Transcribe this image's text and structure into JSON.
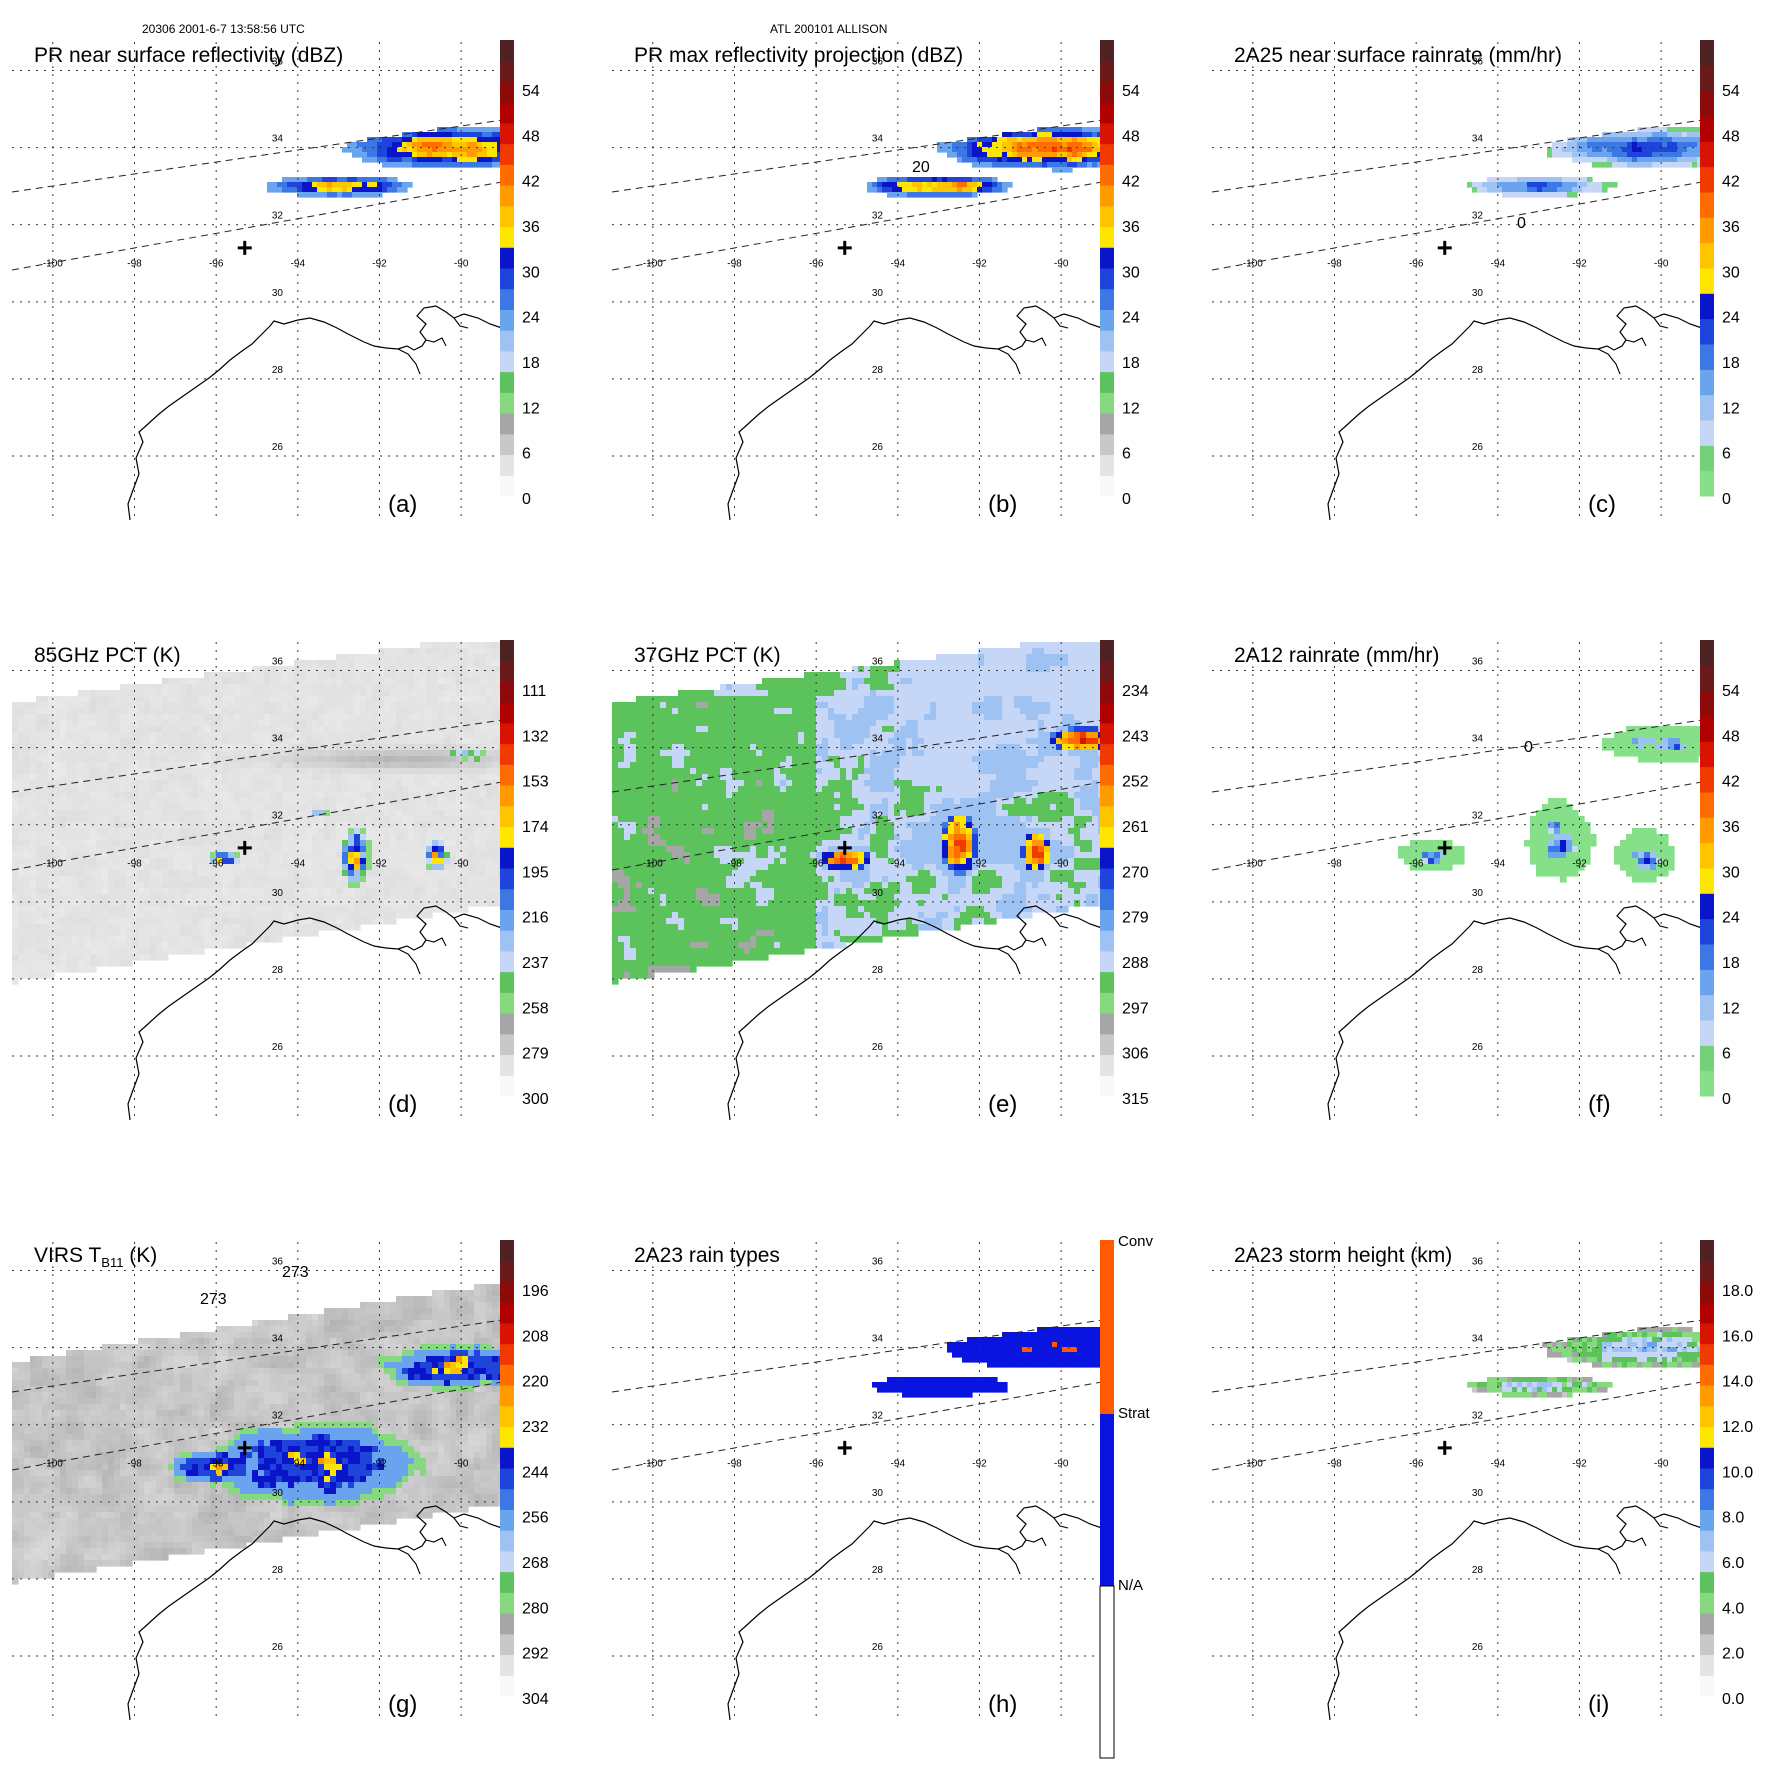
{
  "header": {
    "orbit_time": "20306 2001-6-7 13:58:56 UTC",
    "storm_id": "ATL 200101 ALLISON"
  },
  "map": {
    "lon_ticks": [
      "-100",
      "-98",
      "-96",
      "-94",
      "-92",
      "-90"
    ],
    "lat_ticks": [
      "36",
      "34",
      "32",
      "30",
      "28",
      "26"
    ],
    "lon_range": [
      -101,
      -89
    ],
    "lat_range": [
      25,
      37
    ],
    "storm_center": {
      "lon": -95.3,
      "lat": 31.4
    }
  },
  "panels": [
    {
      "id": "a",
      "title": "PR near surface reflectivity (dBZ)",
      "label": "(a)",
      "field": "dbz_near",
      "swath": "pr",
      "colorbar": {
        "type": "std",
        "ticks": [
          "54",
          "48",
          "42",
          "36",
          "30",
          "24",
          "18",
          "12",
          "6",
          "0"
        ]
      }
    },
    {
      "id": "b",
      "title": "PR max reflectivity projection (dBZ)",
      "label": "(b)",
      "field": "dbz_max",
      "swath": "pr",
      "contour_label": "20",
      "colorbar": {
        "type": "std",
        "ticks": [
          "54",
          "48",
          "42",
          "36",
          "30",
          "24",
          "18",
          "12",
          "6",
          "0"
        ]
      }
    },
    {
      "id": "c",
      "title": "2A25 near surface rainrate (mm/hr)",
      "label": "(c)",
      "field": "rain25",
      "swath": "pr",
      "contour_label": "0",
      "colorbar": {
        "type": "rain",
        "ticks": [
          "54",
          "48",
          "42",
          "36",
          "30",
          "24",
          "18",
          "12",
          "6",
          "0"
        ]
      }
    },
    {
      "id": "d",
      "title": "85GHz PCT (K)",
      "label": "(d)",
      "field": "pct85",
      "swath": "tmi",
      "colorbar": {
        "type": "pct",
        "ticks": [
          "111",
          "132",
          "153",
          "174",
          "195",
          "216",
          "237",
          "258",
          "279",
          "300"
        ]
      }
    },
    {
      "id": "e",
      "title": "37GHz PCT (K)",
      "label": "(e)",
      "field": "pct37",
      "swath": "tmi",
      "colorbar": {
        "type": "pct",
        "ticks": [
          "234",
          "243",
          "252",
          "261",
          "270",
          "279",
          "288",
          "297",
          "306",
          "315"
        ]
      }
    },
    {
      "id": "f",
      "title": "2A12 rainrate (mm/hr)",
      "label": "(f)",
      "field": "rain12",
      "swath": "tmi",
      "contour_label": "0",
      "colorbar": {
        "type": "rain",
        "ticks": [
          "54",
          "48",
          "42",
          "36",
          "30",
          "24",
          "18",
          "12",
          "6",
          "0"
        ]
      }
    },
    {
      "id": "g",
      "title_main": "VIRS T",
      "title_sub": "B11",
      "title_units": " (K)",
      "label": "(g)",
      "field": "virs",
      "swath": "virs",
      "contour_label": "273",
      "colorbar": {
        "type": "pct",
        "ticks": [
          "196",
          "208",
          "220",
          "232",
          "244",
          "256",
          "268",
          "280",
          "292",
          "304"
        ]
      }
    },
    {
      "id": "h",
      "title": "2A23 rain types",
      "label": "(h)",
      "field": "raintype",
      "swath": "pr",
      "colorbar": {
        "type": "cat",
        "ticks": [
          "Conv",
          "Strat",
          "N/A"
        ]
      }
    },
    {
      "id": "i",
      "title": "2A23 storm height (km)",
      "label": "(i)",
      "field": "height",
      "swath": "pr",
      "colorbar": {
        "type": "height",
        "ticks": [
          "18.0",
          "16.0",
          "14.0",
          "12.0",
          "10.0",
          "8.0",
          "6.0",
          "4.0",
          "2.0",
          "0.0"
        ]
      }
    }
  ],
  "colors": {
    "std": [
      "#f8f8f8",
      "#e4e4e4",
      "#c8c8c8",
      "#a6a6a6",
      "#86d97e",
      "#5cc25c",
      "#c6d6f6",
      "#9ec2f2",
      "#6aa4ee",
      "#3c78e4",
      "#1e44dc",
      "#0a14c8",
      "#ffe600",
      "#ffc400",
      "#ff9a00",
      "#ff6c00",
      "#f03a00",
      "#d81400",
      "#b00000",
      "#8c0a0a",
      "#6a1a1a",
      "#4e2222"
    ],
    "rain": [
      "#86e08a",
      "#72d27a",
      "#c6d6f6",
      "#9ec2f2",
      "#6aa4ee",
      "#3c78e4",
      "#1e44dc",
      "#0a14c8",
      "#ffe600",
      "#ffc400",
      "#ff9a00",
      "#ff6c00",
      "#f03a00",
      "#d81400",
      "#b00000",
      "#8c0a0a",
      "#6a1a1a",
      "#4e2222"
    ],
    "height": [
      "#f8f8f8",
      "#e4e4e4",
      "#c8c8c8",
      "#a6a6a6",
      "#86d97e",
      "#5cc25c",
      "#c6d6f6",
      "#9ec2f2",
      "#6aa4ee",
      "#3c78e4",
      "#1e44dc",
      "#0a14c8",
      "#ffe600",
      "#ffc400",
      "#ff9a00",
      "#ff6c00",
      "#f03a00",
      "#d81400",
      "#b00000",
      "#8c0a0a",
      "#6a1a1a",
      "#4e2222"
    ],
    "cat": [
      "#ffffff",
      "#0a14e0",
      "#ff5a00"
    ]
  }
}
